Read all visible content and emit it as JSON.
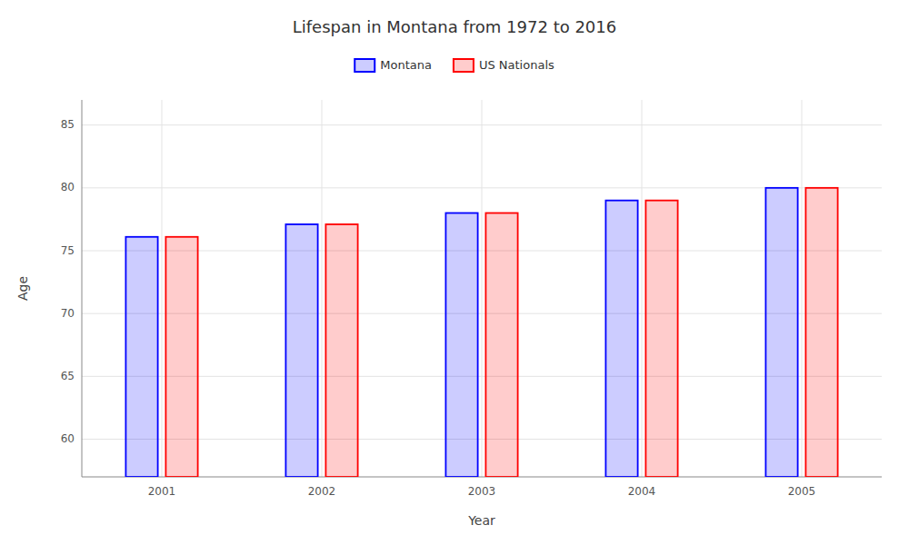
{
  "chart_data": {
    "type": "bar",
    "title": "Lifespan in Montana from 1972 to 2016",
    "xlabel": "Year",
    "ylabel": "Age",
    "categories": [
      "2001",
      "2002",
      "2003",
      "2004",
      "2005"
    ],
    "series": [
      {
        "name": "Montana",
        "color": "#0000ff",
        "values": [
          76.1,
          77.1,
          78.0,
          79.0,
          80.0
        ]
      },
      {
        "name": "US Nationals",
        "color": "#ff0000",
        "values": [
          76.1,
          77.1,
          78.0,
          79.0,
          80.0
        ]
      }
    ],
    "ylim": [
      57,
      87
    ],
    "yticks": [
      60,
      65,
      70,
      75,
      80,
      85
    ],
    "grid": true,
    "legend": "top"
  }
}
